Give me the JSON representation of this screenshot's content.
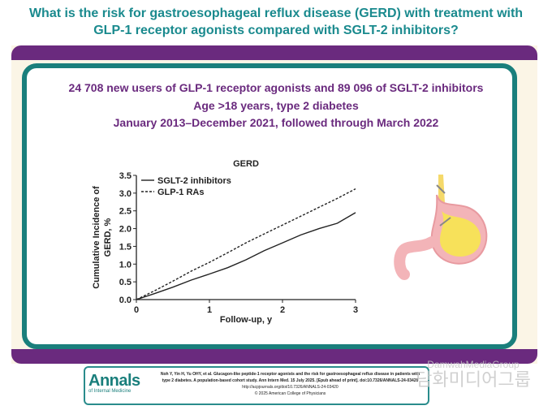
{
  "title_line1": "What is the risk for gastroesophageal reflux disease (GERD) with treatment with",
  "title_line2": "GLP-1 receptor agonists compared with SGLT-2 inhibitors?",
  "subtitle_line1": "24 708 new users of GLP-1 receptor agonists and 89 096 of SGLT-2 inhibitors",
  "subtitle_line2": "Age >18 years, type 2 diabetes",
  "subtitle_line3": "January 2013–December 2021, followed through March 2022",
  "chart_data": {
    "type": "line",
    "title": "GERD",
    "xlabel": "Follow-up, y",
    "ylabel": "Cumulative Incidence of GERD, %",
    "xlim": [
      0,
      3
    ],
    "ylim": [
      0,
      3.5
    ],
    "xticks": [
      "0",
      "1",
      "2",
      "3"
    ],
    "yticks": [
      "0.0",
      "0.5",
      "1.0",
      "1.5",
      "2.0",
      "2.5",
      "3.0",
      "3.5"
    ],
    "legend_position": "top-left",
    "grid": false,
    "series": [
      {
        "name": "SGLT-2 inhibitors",
        "style": "solid",
        "x": [
          0,
          0.25,
          0.5,
          0.75,
          1.0,
          1.25,
          1.5,
          1.75,
          2.0,
          2.25,
          2.5,
          2.75,
          3.0
        ],
        "y": [
          0,
          0.17,
          0.35,
          0.55,
          0.72,
          0.9,
          1.12,
          1.38,
          1.6,
          1.82,
          2.0,
          2.15,
          2.45
        ]
      },
      {
        "name": "GLP-1 RAs",
        "style": "dashed",
        "x": [
          0,
          0.25,
          0.5,
          0.75,
          1.0,
          1.25,
          1.5,
          1.75,
          2.0,
          2.25,
          2.5,
          2.75,
          3.0
        ],
        "y": [
          0,
          0.25,
          0.52,
          0.8,
          1.05,
          1.32,
          1.6,
          1.85,
          2.1,
          2.35,
          2.6,
          2.85,
          3.12
        ]
      }
    ]
  },
  "footer": {
    "logo_main": "Annals",
    "logo_sub": "of Internal Medicine",
    "citation": "Noh Y, Yin H, Yu OHY, et al. Glucagon-like peptide-1 receptor agonists and the risk for gastroesophageal reflux disease in patients with type 2 diabetes. A population-based cohort study. Ann Intern Med. 15 July 2025. [Epub ahead of print]. doi:10.7326/ANNALS-24-03420",
    "url": "http://acpjournals.org/doi/10.7326/ANNALS-24-03420",
    "copyright": "© 2025 American College of Physicians"
  },
  "watermark": {
    "en": "DamwahMediaGroup",
    "ko": "담화미디어그룹"
  },
  "colors": {
    "title": "#1a8a8e",
    "accent_purple": "#6a2a7e",
    "card_border": "#1a7f7c",
    "band_bg": "#fbf5e6"
  }
}
